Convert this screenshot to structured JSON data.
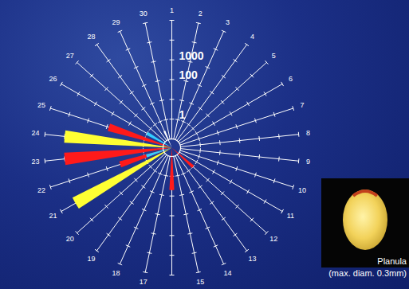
{
  "chart_data": {
    "type": "rose",
    "categories": [
      "1",
      "2",
      "3",
      "4",
      "5",
      "6",
      "7",
      "8",
      "9",
      "10",
      "11",
      "12",
      "13",
      "14",
      "15",
      null,
      "17",
      "18",
      "19",
      "20",
      "21",
      "22",
      "23",
      "24",
      "25",
      "26",
      "27",
      "28",
      "29",
      "30"
    ],
    "log": true,
    "ylim": [
      0.1,
      100000
    ],
    "yticks": [
      1,
      100,
      1000
    ],
    "series": [
      {
        "color": "#ff1a1a",
        "values": [
          null,
          null,
          null,
          null,
          null,
          null,
          null,
          null,
          null,
          null,
          null,
          1,
          null,
          null,
          null,
          5,
          null,
          null,
          null,
          null,
          null,
          20,
          10000,
          null,
          80,
          null,
          null,
          null,
          null,
          null
        ]
      },
      {
        "color": "#ffff33",
        "values": [
          null,
          null,
          null,
          null,
          null,
          null,
          null,
          null,
          null,
          null,
          null,
          null,
          null,
          null,
          null,
          null,
          null,
          null,
          null,
          null,
          15000,
          null,
          null,
          10000,
          null,
          null,
          null,
          null,
          null,
          null
        ]
      },
      {
        "color": "#33ccff",
        "values": [
          null,
          null,
          null,
          null,
          null,
          null,
          null,
          null,
          null,
          null,
          null,
          null,
          null,
          null,
          null,
          null,
          null,
          null,
          null,
          null,
          null,
          0.8,
          null,
          null,
          null,
          1,
          null,
          null,
          null,
          null
        ]
      },
      {
        "color": "#ffffff",
        "values": [
          null,
          null,
          null,
          null,
          null,
          null,
          null,
          null,
          null,
          null,
          null,
          null,
          null,
          null,
          null,
          null,
          null,
          null,
          null,
          null,
          null,
          null,
          null,
          null,
          null,
          null,
          null,
          null,
          0.3,
          null
        ]
      }
    ],
    "inset": {
      "label": "Planula",
      "caption": "(max. diam. 0.3mm)"
    }
  }
}
